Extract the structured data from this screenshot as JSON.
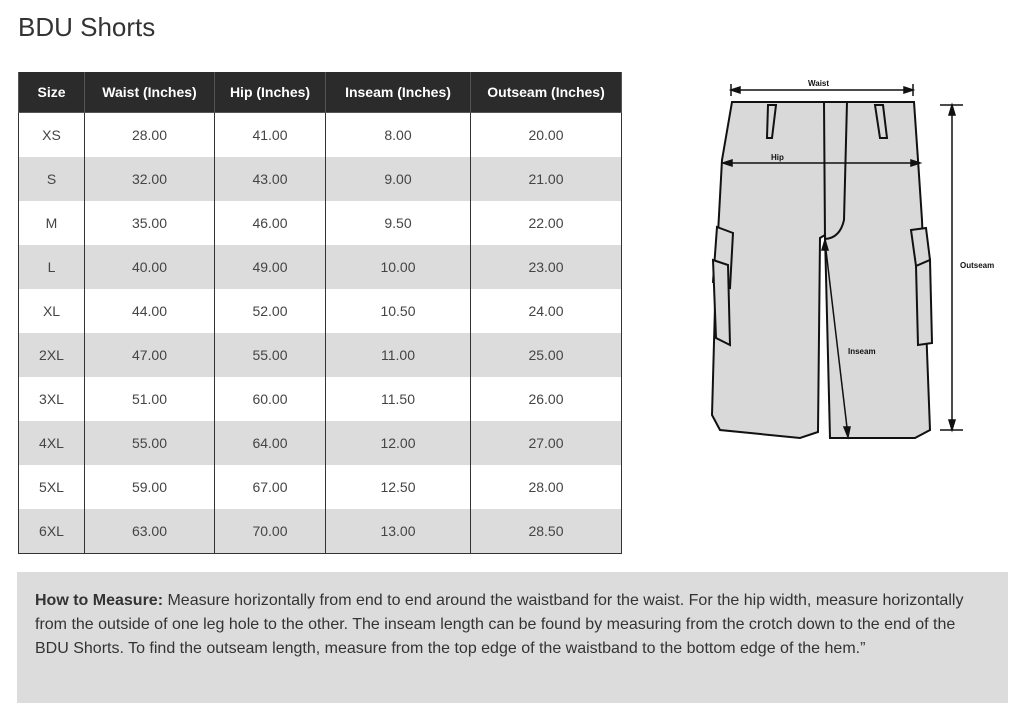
{
  "title": "BDU Shorts",
  "table": {
    "headers": [
      "Size",
      "Waist (Inches)",
      "Hip (Inches)",
      "Inseam (Inches)",
      "Outseam (Inches)"
    ],
    "rows": [
      [
        "XS",
        "28.00",
        "41.00",
        "8.00",
        "20.00"
      ],
      [
        "S",
        "32.00",
        "43.00",
        "9.00",
        "21.00"
      ],
      [
        "M",
        "35.00",
        "46.00",
        "9.50",
        "22.00"
      ],
      [
        "L",
        "40.00",
        "49.00",
        "10.00",
        "23.00"
      ],
      [
        "XL",
        "44.00",
        "52.00",
        "10.50",
        "24.00"
      ],
      [
        "2XL",
        "47.00",
        "55.00",
        "11.00",
        "25.00"
      ],
      [
        "3XL",
        "51.00",
        "60.00",
        "11.50",
        "26.00"
      ],
      [
        "4XL",
        "55.00",
        "64.00",
        "12.00",
        "27.00"
      ],
      [
        "5XL",
        "59.00",
        "67.00",
        "12.50",
        "28.00"
      ],
      [
        "6XL",
        "63.00",
        "70.00",
        "13.00",
        "28.50"
      ]
    ]
  },
  "diagram": {
    "waist": "Waist",
    "hip": "Hip",
    "inseam": "Inseam",
    "outseam": "Outseam"
  },
  "note": {
    "label": "How to Measure:",
    "text": " Measure horizontally from end to end around the waistband for the waist. For the hip width, measure horizontally from the outside of one leg hole to the other. The inseam length can be found by measuring from the crotch down to the end of the BDU Shorts. To find the outseam length, measure from the top edge of the waistband to the bottom edge of the hem.”"
  }
}
